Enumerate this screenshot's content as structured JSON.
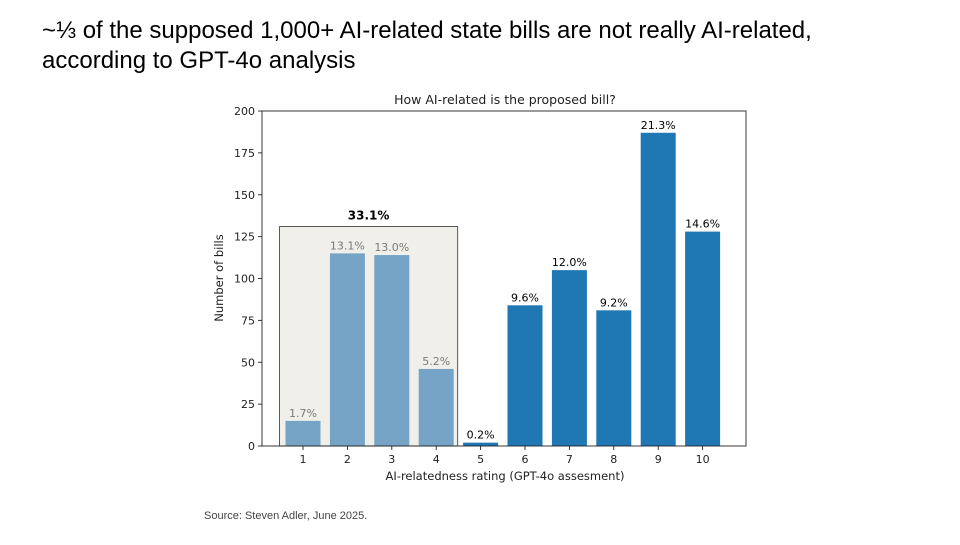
{
  "slide": {
    "title_line1": "~⅓ of the supposed 1,000+ AI-related state bills are not really AI-related,",
    "title_line2": "according to GPT-4o analysis",
    "source": "Source: Steven Adler, June 2025."
  },
  "chart_data": {
    "type": "bar",
    "title": "How AI-related is the proposed bill?",
    "xlabel": "AI-relatedness rating (GPT-4o assesment)",
    "ylabel": "Number of bills",
    "categories": [
      "1",
      "2",
      "3",
      "4",
      "5",
      "6",
      "7",
      "8",
      "9",
      "10"
    ],
    "values": [
      15,
      115,
      114,
      46,
      2,
      84,
      105,
      81,
      187,
      128
    ],
    "data_labels": [
      "1.7%",
      "13.1%",
      "13.0%",
      "5.2%",
      "0.2%",
      "9.6%",
      "12.0%",
      "9.2%",
      "21.3%",
      "14.6%"
    ],
    "ylim": [
      0,
      200
    ],
    "yticks": [
      0,
      25,
      50,
      75,
      100,
      125,
      150,
      175,
      200
    ],
    "grid": false,
    "highlight": {
      "categories": [
        "1",
        "2",
        "3",
        "4"
      ],
      "label": "33.1%",
      "top_value": 131
    },
    "colors": {
      "highlight_bar": "#75a4c6",
      "main_bar": "#1f77b4",
      "highlight_box": "#f0efea",
      "highlight_label_text": "#7a7a7a",
      "label_text": "#000000"
    }
  }
}
